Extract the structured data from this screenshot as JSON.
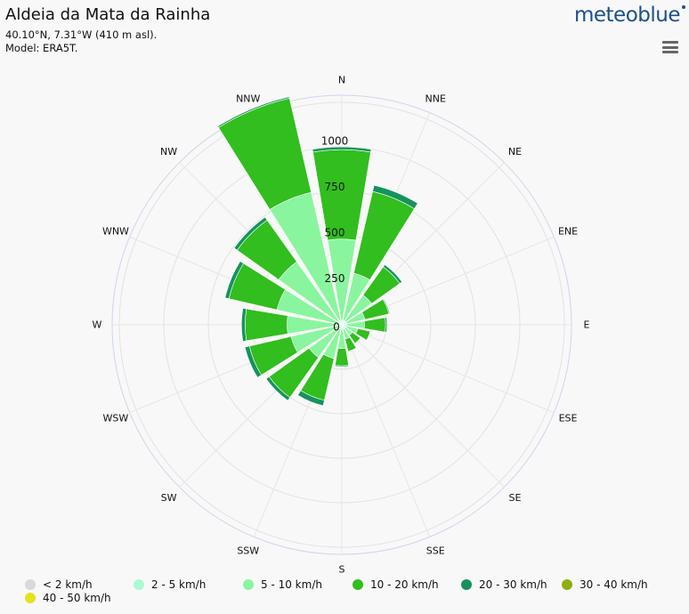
{
  "header": {
    "title": "Aldeia da Mata da Rainha",
    "coords": "40.10°N, 7.31°W (410 m asl).",
    "model": "Model: ERA5T."
  },
  "brand": {
    "logo_text": "meteoblue",
    "color": "#1c4f8a"
  },
  "menu": {
    "icon": "hamburger-menu-icon"
  },
  "chart_data": {
    "type": "windrose",
    "directions": [
      "N",
      "NNE",
      "NE",
      "ENE",
      "E",
      "ESE",
      "SE",
      "SSE",
      "S",
      "SSW",
      "SW",
      "WSW",
      "W",
      "WNW",
      "NW",
      "NNW"
    ],
    "radial_ticks": [
      "0",
      "250",
      "500",
      "750",
      "1000"
    ],
    "rmax": 1100,
    "series": [
      {
        "name": "< 2 km/h",
        "color": "#d9d9d9",
        "values": [
          0,
          0,
          0,
          0,
          0,
          0,
          0,
          0,
          0,
          0,
          0,
          0,
          0,
          0,
          0,
          0
        ]
      },
      {
        "name": "2 - 5 km/h",
        "color": "#aef8d4",
        "values": [
          25,
          25,
          25,
          25,
          25,
          25,
          25,
          25,
          25,
          25,
          25,
          25,
          25,
          25,
          25,
          25
        ]
      },
      {
        "name": "5 - 10 km/h",
        "color": "#8af59f",
        "values": [
          445,
          265,
          175,
          105,
          100,
          65,
          45,
          55,
          105,
          165,
          195,
          260,
          275,
          340,
          400,
          720
        ]
      },
      {
        "name": "10 - 20 km/h",
        "color": "#31be1e",
        "values": [
          490,
          460,
          190,
          135,
          115,
          70,
          55,
          70,
          95,
          235,
          270,
          235,
          230,
          270,
          280,
          530
        ]
      },
      {
        "name": "20 - 30 km/h",
        "color": "#16935d",
        "values": [
          15,
          35,
          15,
          5,
          8,
          3,
          3,
          3,
          5,
          30,
          20,
          25,
          20,
          22,
          20,
          8
        ]
      },
      {
        "name": "30 - 40 km/h",
        "color": "#8faf12",
        "values": [
          0,
          0,
          0,
          0,
          0,
          0,
          0,
          0,
          0,
          0,
          0,
          0,
          0,
          0,
          0,
          0
        ]
      },
      {
        "name": "40 - 50 km/h",
        "color": "#e3e31a",
        "values": [
          0,
          0,
          0,
          0,
          0,
          0,
          0,
          0,
          0,
          0,
          0,
          0,
          0,
          0,
          0,
          0
        ]
      }
    ]
  }
}
